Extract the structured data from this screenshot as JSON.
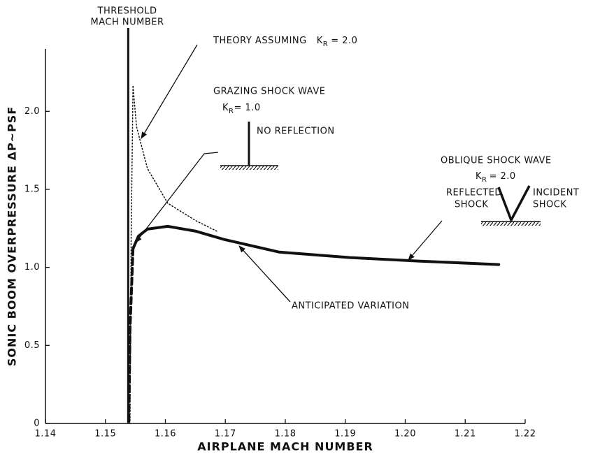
{
  "chart_data": {
    "type": "line",
    "xlabel": "AIRPLANE MACH NUMBER",
    "ylabel": "SONIC BOOM OVERPRESSURE ΔP~PSF",
    "xlim": [
      1.14,
      1.22
    ],
    "xticks": [
      1.14,
      1.15,
      1.16,
      1.17,
      1.18,
      1.19,
      {
        "value": 1.2,
        "label": "1.20"
      },
      1.21,
      1.22
    ],
    "ylim": [
      0,
      2.4
    ],
    "yticks": [
      0,
      0.5,
      {
        "value": 1.0,
        "label": "1.0"
      },
      1.5,
      {
        "value": 2.0,
        "label": "2.0"
      }
    ],
    "threshold_mach": 1.1538,
    "series": [
      {
        "color": "#111111",
        "style": "solid",
        "width": 4,
        "x": [
          1.1546,
          1.1555,
          1.157,
          1.1604,
          1.1651,
          1.1698,
          1.179,
          1.1908,
          1.2025,
          1.2156
        ],
        "values": [
          1.12,
          1.2,
          1.245,
          1.263,
          1.232,
          1.179,
          1.098,
          1.063,
          1.04,
          1.018
        ]
      },
      {
        "color": "#111111",
        "style": "dashed",
        "width": 4,
        "x": [
          1.1546,
          1.1541,
          1.1539
        ],
        "values": [
          1.12,
          0.6,
          0
        ]
      },
      {
        "color": "#111111",
        "style": "dotted",
        "width": 1.5,
        "x": [
          1.1546,
          1.1552,
          1.157,
          1.1604,
          1.1651,
          1.1686
        ],
        "values": [
          2.16,
          1.9,
          1.634,
          1.411,
          1.299,
          1.232
        ]
      },
      {
        "color": "#111111",
        "style": "dotted",
        "width": 1.5,
        "x": [
          1.1546,
          1.1543,
          1.1541
        ],
        "values": [
          2.16,
          1.2,
          0
        ]
      }
    ],
    "annotations": {
      "threshold": [
        "THRESHOLD",
        "MACH NUMBER"
      ],
      "theory": {
        "text": "THEORY ASSUMING",
        "k": "K",
        "sub": "R",
        "eq": "= 2.0"
      },
      "grazing": {
        "title": "GRAZING SHOCK WAVE",
        "k": "K",
        "sub": "R",
        "eq": "= 1.0",
        "note": "NO REFLECTION"
      },
      "oblique": {
        "title": "OBLIQUE SHOCK WAVE",
        "k": "K",
        "sub": "R",
        "eq": "= 2.0",
        "reflected": [
          "REFLECTED",
          "SHOCK"
        ],
        "incident": [
          "INCIDENT",
          "SHOCK"
        ]
      },
      "anticipated": "ANTICIPATED VARIATION"
    }
  }
}
